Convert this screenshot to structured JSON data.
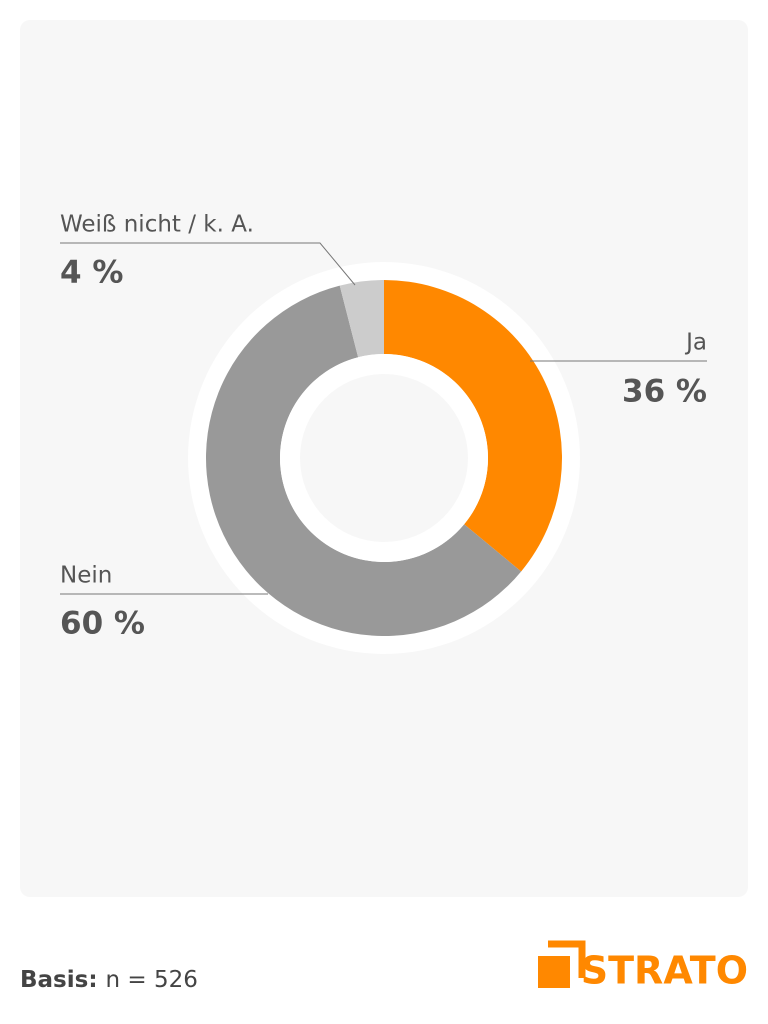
{
  "chart_data": {
    "type": "donut",
    "categories": [
      "Ja",
      "Nein",
      "Weiß nicht / k. A."
    ],
    "values": [
      36,
      60,
      4
    ],
    "value_labels": [
      "36 %",
      "60 %",
      "4 %"
    ],
    "colors": [
      "#ff8800",
      "#999999",
      "#cccccc"
    ]
  },
  "footer": {
    "basis_label": "Basis:",
    "basis_value": "n = 526",
    "logo": "STRATO"
  }
}
